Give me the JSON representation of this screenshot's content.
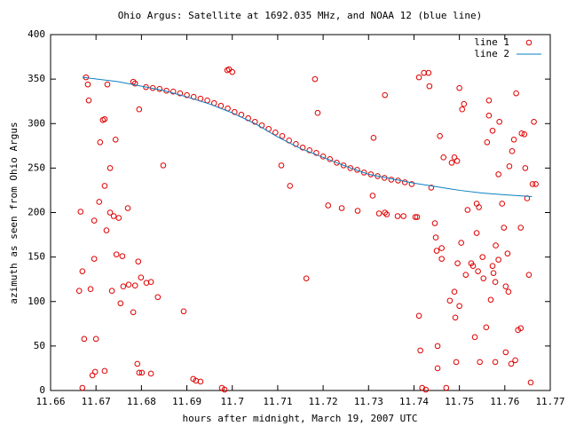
{
  "chart_data": {
    "type": "scatter",
    "title": "Ohio Argus: Satellite at 1692.035 MHz, and NOAA 12 (blue line)",
    "x_label": "hours after midnight, March 19, 2007 UTC",
    "y_label": "azimuth as seen from Ohio Argus",
    "xlim": [
      11.66,
      11.77
    ],
    "ylim": [
      0,
      400
    ],
    "xticks": [
      11.66,
      11.67,
      11.68,
      11.69,
      11.7,
      11.71,
      11.72,
      11.73,
      11.74,
      11.75,
      11.76,
      11.77
    ],
    "yticks": [
      0,
      50,
      100,
      150,
      200,
      250,
      300,
      350,
      400
    ],
    "legend": "top-right",
    "series": [
      {
        "name": "line 1",
        "type": "scatter",
        "color": "#e00000",
        "x": [
          11.667,
          11.6666,
          11.6663,
          11.667,
          11.6674,
          11.6678,
          11.6682,
          11.6684,
          11.6688,
          11.6696,
          11.6696,
          11.6692,
          11.67,
          11.6698,
          11.6707,
          11.6709,
          11.6715,
          11.6719,
          11.6719,
          11.6719,
          11.6723,
          11.6725,
          11.6731,
          11.6731,
          11.6735,
          11.6739,
          11.6743,
          11.6745,
          11.675,
          11.6754,
          11.6758,
          11.676,
          11.677,
          11.6772,
          11.6782,
          11.6786,
          11.6782,
          11.6786,
          11.6791,
          11.6793,
          11.6795,
          11.6799,
          11.6795,
          11.6801,
          11.6811,
          11.6821,
          11.6821,
          11.6836,
          11.6848,
          11.6893,
          11.6914,
          11.692,
          11.693,
          11.6977,
          11.6983,
          11.6989,
          11.6993,
          11.7,
          11.7163,
          11.7182,
          11.7188,
          11.7108,
          11.7127,
          11.7211,
          11.7241,
          11.7276,
          11.7311,
          11.7309,
          11.7323,
          11.7336,
          11.734,
          11.7336,
          11.7364,
          11.7377,
          11.7403,
          11.7407,
          11.7411,
          11.7422,
          11.7432,
          11.7434,
          11.7418,
          11.7426,
          11.7411,
          11.7414,
          11.7438,
          11.7446,
          11.7448,
          11.745,
          11.7452,
          11.7452,
          11.7461,
          11.7461,
          11.7457,
          11.7465,
          11.7471,
          11.7479,
          11.7483,
          11.7489,
          11.7495,
          11.7489,
          11.7491,
          11.7493,
          11.7496,
          11.75,
          11.75,
          11.7504,
          11.7506,
          11.751,
          11.7514,
          11.7518,
          11.7526,
          11.753,
          11.7534,
          11.7538,
          11.7543,
          11.7538,
          11.7541,
          11.7545,
          11.7551,
          11.7553,
          11.7559,
          11.7565,
          11.7561,
          11.7565,
          11.7569,
          11.7573,
          11.7573,
          11.7575,
          11.7579,
          11.7579,
          11.758,
          11.7586,
          11.7586,
          11.7588,
          11.7594,
          11.7598,
          11.7602,
          11.7602,
          11.7608,
          11.7606,
          11.761,
          11.7614,
          11.7616,
          11.762,
          11.7623,
          11.7625,
          11.7629,
          11.7635,
          11.7635,
          11.7637,
          11.7643,
          11.7645,
          11.7649,
          11.7653,
          11.7657,
          11.7661,
          11.7668,
          11.7664,
          11.681,
          11.6825,
          11.684,
          11.6855,
          11.687,
          11.6885,
          11.69,
          11.6915,
          11.693,
          11.6945,
          11.696,
          11.6975,
          11.699,
          11.7005,
          11.702,
          11.7035,
          11.705,
          11.7065,
          11.708,
          11.7095,
          11.711,
          11.7125,
          11.714,
          11.7155,
          11.717,
          11.7185,
          11.72,
          11.7215,
          11.723,
          11.7245,
          11.726,
          11.7275,
          11.729,
          11.7305,
          11.732,
          11.7335,
          11.735,
          11.7365,
          11.738,
          11.7395
        ],
        "y": [
          3,
          201,
          112,
          134,
          58,
          352,
          344,
          326,
          114,
          191,
          148,
          17,
          58,
          21,
          212,
          279,
          304,
          305,
          22,
          230,
          180,
          344,
          200,
          250,
          112,
          196,
          282,
          153,
          194,
          98,
          151,
          117,
          205,
          119,
          347,
          345,
          88,
          118,
          30,
          145,
          316,
          127,
          20,
          20,
          121,
          122,
          19,
          105,
          253,
          89,
          13,
          11,
          10,
          3,
          1,
          360,
          361,
          358,
          126,
          350,
          312,
          253,
          230,
          208,
          205,
          202,
          284,
          219,
          199,
          200,
          198,
          332,
          196,
          196,
          195,
          195,
          352,
          357,
          357,
          342,
          3,
          1,
          84,
          45,
          228,
          188,
          172,
          157,
          25,
          50,
          148,
          160,
          286,
          262,
          3,
          101,
          256,
          262,
          258,
          111,
          82,
          32,
          143,
          340,
          95,
          166,
          316,
          322,
          130,
          203,
          143,
          140,
          60,
          210,
          206,
          177,
          134,
          32,
          150,
          126,
          71,
          326,
          279,
          309,
          102,
          140,
          292,
          132,
          122,
          32,
          163,
          147,
          243,
          302,
          210,
          183,
          43,
          117,
          111,
          154,
          252,
          30,
          269,
          282,
          34,
          334,
          68,
          70,
          183,
          289,
          288,
          250,
          216,
          130,
          9,
          232,
          232,
          302,
          341,
          340,
          339,
          337,
          336,
          334,
          332,
          330,
          328,
          326,
          323,
          320,
          317,
          313,
          310,
          306,
          302,
          298,
          294,
          290,
          286,
          281,
          277,
          273,
          270,
          267,
          263,
          260,
          256,
          253,
          250,
          248,
          245,
          243,
          241,
          239,
          237,
          236,
          234,
          232
        ]
      },
      {
        "name": "line 2",
        "type": "line",
        "color": "#0a80c0",
        "x": [
          11.667,
          11.675,
          11.68,
          11.685,
          11.69,
          11.695,
          11.7,
          11.705,
          11.71,
          11.715,
          11.72,
          11.725,
          11.73,
          11.735,
          11.74,
          11.745,
          11.75,
          11.755,
          11.76,
          11.766
        ],
        "y": [
          352,
          347,
          342,
          337,
          330,
          322,
          312,
          300,
          285,
          272,
          262,
          252,
          243,
          238,
          233,
          229,
          225,
          222,
          220,
          218
        ]
      }
    ]
  }
}
